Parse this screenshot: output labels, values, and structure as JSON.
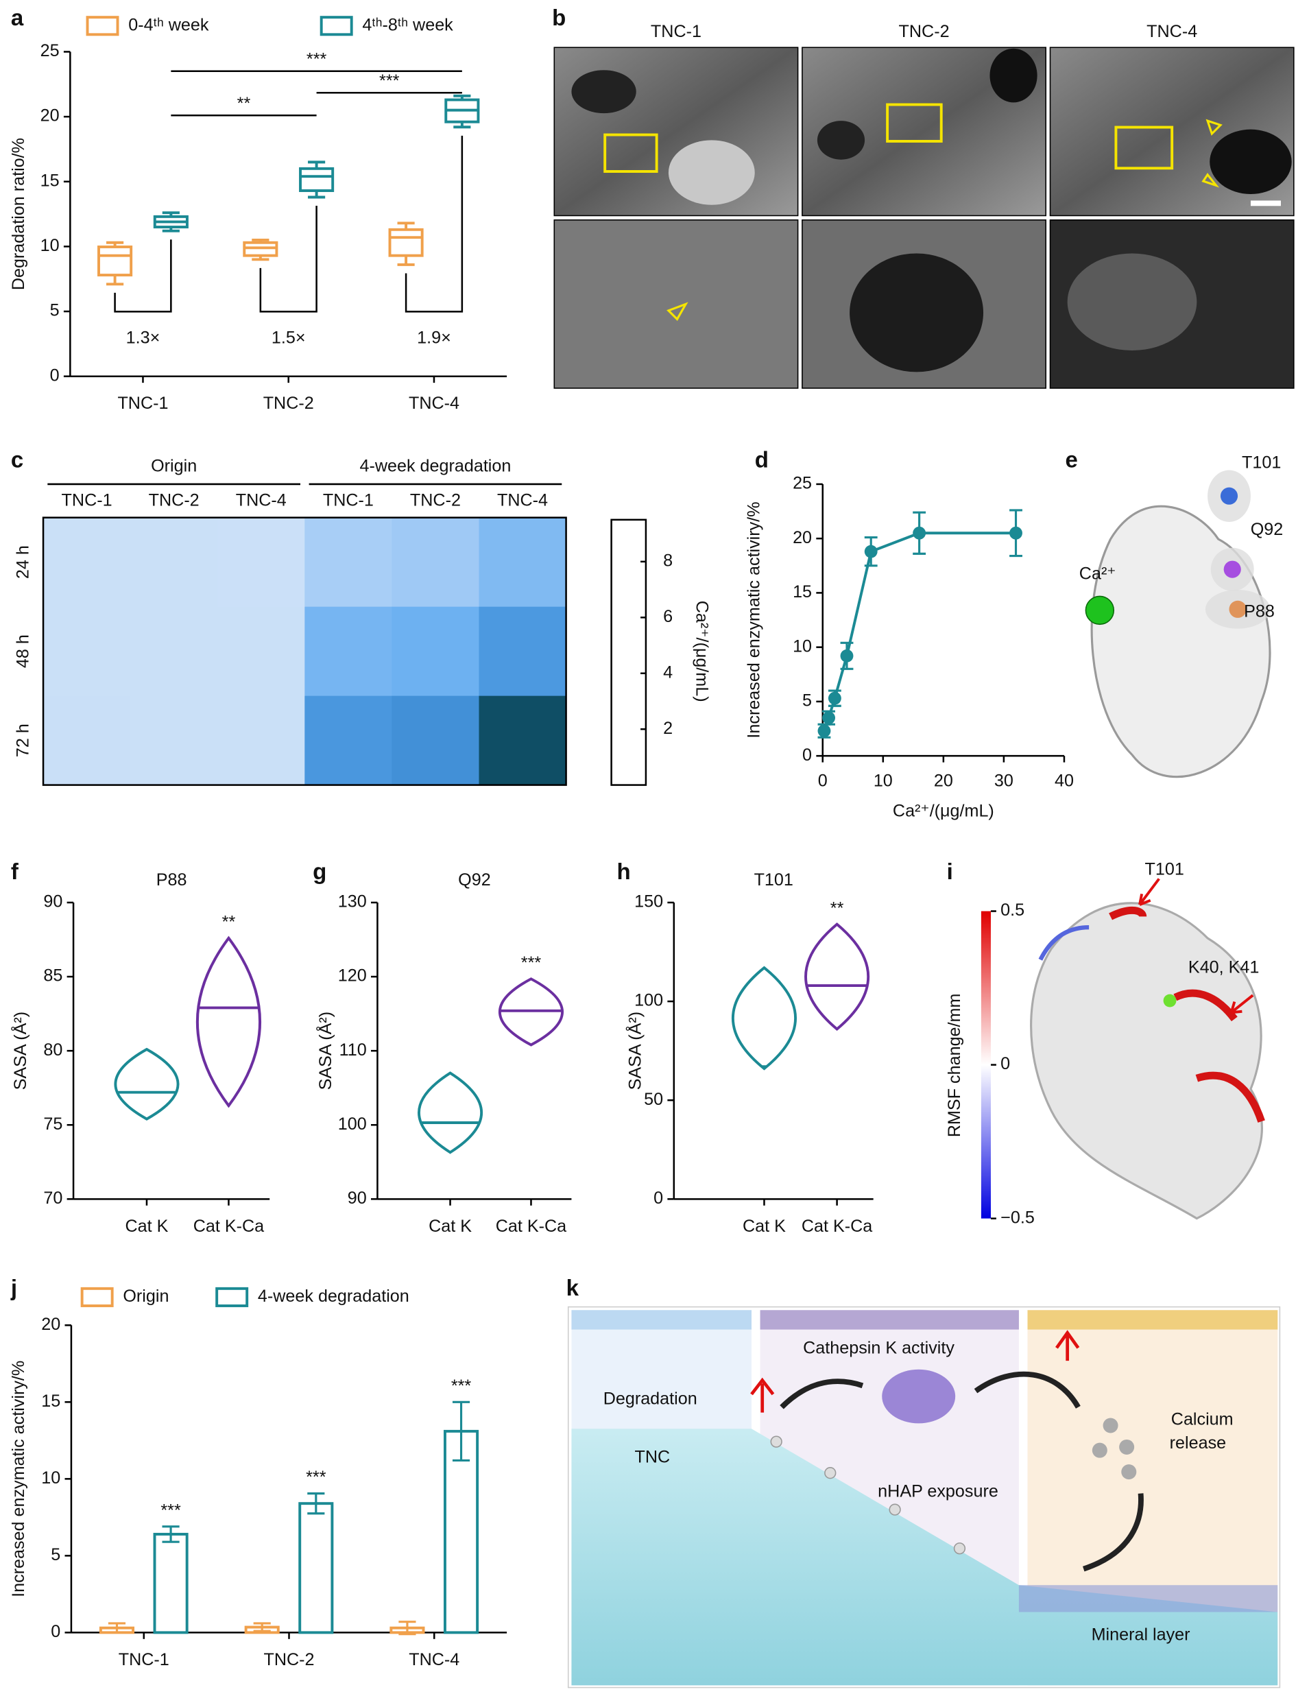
{
  "panel_labels": [
    "a",
    "b",
    "c",
    "d",
    "e",
    "f",
    "g",
    "h",
    "i",
    "j",
    "k"
  ],
  "chart_data": [
    {
      "type": "box",
      "ylabel": "Degradation ratio/%",
      "categories": [
        "TNC-1",
        "TNC-2",
        "TNC-4"
      ],
      "ylim": [
        0,
        25
      ],
      "yticks": [
        0,
        5,
        10,
        15,
        20,
        25
      ],
      "series": [
        {
          "name": "0-4ᵗʰ week",
          "color": "#f0a04b",
          "values": [
            {
              "min": 7.1,
              "q1": 7.8,
              "median": 9.3,
              "q3": 9.97,
              "max": 10.3
            },
            {
              "min": 9.0,
              "q1": 9.3,
              "median": 9.9,
              "q3": 10.3,
              "max": 10.5
            },
            {
              "min": 8.6,
              "q1": 9.3,
              "median": 10.7,
              "q3": 11.3,
              "max": 11.8
            }
          ]
        },
        {
          "name": "4ᵗʰ-8ᵗʰ week",
          "color": "#1b8a94",
          "values": [
            {
              "min": 11.2,
              "q1": 11.5,
              "median": 11.9,
              "q3": 12.3,
              "max": 12.6
            },
            {
              "min": 13.8,
              "q1": 14.3,
              "median": 15.4,
              "q3": 16.0,
              "max": 16.5
            },
            {
              "min": 19.2,
              "q1": 19.6,
              "median": 20.5,
              "q3": 21.3,
              "max": 21.6
            }
          ]
        }
      ],
      "significance": [
        "**",
        "***",
        "***"
      ],
      "fold_labels": [
        "1.3×",
        "1.5×",
        "1.9×"
      ],
      "fold_color": "#c8283c"
    },
    {
      "type": "heatmap",
      "x_groups": [
        {
          "name": "Origin",
          "categories": [
            "TNC-1",
            "TNC-2",
            "TNC-4"
          ]
        },
        {
          "name": "4-week degradation",
          "categories": [
            "TNC-1",
            "TNC-2",
            "TNC-4"
          ]
        }
      ],
      "y": [
        "24 h",
        "48 h",
        "72 h"
      ],
      "values": [
        [
          0.6,
          0.6,
          0.55,
          2.3,
          2.6,
          3.6
        ],
        [
          0.6,
          0.6,
          0.6,
          3.9,
          4.2,
          5.6
        ],
        [
          0.65,
          0.6,
          0.6,
          5.7,
          6.1,
          9.2
        ]
      ],
      "clim": [
        0,
        9.5
      ],
      "cticks": [
        2,
        4,
        6,
        8
      ],
      "colorbar_label": "Ca²⁺/(μg/mL)",
      "colormap": [
        "#d6e6f8",
        "#a6cdf6",
        "#5ca8ef",
        "#2f7dc4",
        "#0a4757"
      ]
    },
    {
      "type": "line",
      "xlabel": "Ca²⁺/(μg/mL)",
      "ylabel": "Increased enzymatic activiry/%",
      "x": [
        0.25,
        1,
        2,
        4,
        8,
        16,
        32
      ],
      "values": [
        2.3,
        3.5,
        5.3,
        9.2,
        18.8,
        20.5,
        20.5
      ],
      "errors": [
        0.6,
        0.6,
        0.7,
        1.2,
        1.3,
        1.9,
        2.1
      ],
      "color": "#1b8a94",
      "xlim": [
        0,
        40
      ],
      "xticks": [
        0,
        10,
        20,
        30,
        40
      ],
      "ylim": [
        0,
        25
      ],
      "yticks": [
        0,
        5,
        10,
        15,
        20,
        25
      ]
    },
    {
      "type": "violin",
      "title": "P88",
      "ylabel": "SASA (Å²)",
      "categories": [
        "Cat K",
        "Cat K-Ca"
      ],
      "colors": [
        "#1b8a94",
        "#6b2fa0"
      ],
      "ylim": [
        70,
        90
      ],
      "yticks": [
        70,
        75,
        80,
        85,
        90
      ],
      "values": [
        {
          "min": 75.4,
          "median": 77.2,
          "max": 80.1
        },
        {
          "min": 76.3,
          "median": 82.9,
          "max": 87.6
        }
      ],
      "significance": "**"
    },
    {
      "type": "violin",
      "title": "Q92",
      "ylabel": "SASA (Å²)",
      "categories": [
        "Cat K",
        "Cat K-Ca"
      ],
      "colors": [
        "#1b8a94",
        "#6b2fa0"
      ],
      "ylim": [
        90,
        130
      ],
      "yticks": [
        90,
        100,
        110,
        120,
        130
      ],
      "values": [
        {
          "min": 96.3,
          "median": 100.3,
          "max": 107.0
        },
        {
          "min": 110.8,
          "median": 115.4,
          "max": 119.7
        }
      ],
      "significance": "***"
    },
    {
      "type": "violin",
      "title": "T101",
      "ylabel": "SASA (Å²)",
      "categories": [
        "Cat K",
        "Cat K-Ca"
      ],
      "colors": [
        "#1b8a94",
        "#6b2fa0"
      ],
      "ylim": [
        0,
        150
      ],
      "yticks": [
        0,
        50,
        100,
        150
      ],
      "values": [
        {
          "min": 66,
          "median": 67,
          "max": 117
        },
        {
          "min": 86,
          "median": 108,
          "max": 139
        }
      ],
      "significance": "**"
    },
    {
      "type": "bar",
      "ylabel": "Increased enzymatic activiry/%",
      "categories": [
        "TNC-1",
        "TNC-2",
        "TNC-4"
      ],
      "ylim": [
        0,
        20
      ],
      "yticks": [
        0,
        5,
        10,
        15,
        20
      ],
      "series": [
        {
          "name": "Origin",
          "color": "#f0a04b",
          "values": [
            0.3,
            0.35,
            0.3
          ],
          "errors": [
            0.3,
            0.25,
            0.4
          ]
        },
        {
          "name": "4-week degradation",
          "color": "#1b8a94",
          "values": [
            6.4,
            8.4,
            13.1
          ],
          "errors": [
            0.5,
            0.65,
            1.9
          ]
        }
      ],
      "significance": [
        "***",
        "***",
        "***"
      ]
    }
  ],
  "panel_b": {
    "titles": [
      "TNC-1",
      "TNC-2",
      "TNC-4"
    ]
  },
  "panel_e": {
    "labels": [
      "T101",
      "Q92",
      "Ca²⁺",
      "P88"
    ]
  },
  "panel_i": {
    "labels": [
      "T101",
      "K40, K41"
    ],
    "colorbar_label": "RMSF change/mm",
    "clim": [
      -0.5,
      0.5
    ],
    "cticks": [
      0.5,
      0,
      {
        "value": -0.5,
        "label": "−0.5"
      }
    ],
    "colormap": [
      "#0000e0",
      "#ffffff",
      "#e00000"
    ]
  },
  "panel_k": {
    "activity": "Cathepsin K activity",
    "degradation": "Degradation",
    "calcium_release": [
      "Calcium",
      "release"
    ],
    "tnc": "TNC",
    "exposure": "nHAP exposure",
    "mineral": "Mineral layer"
  }
}
